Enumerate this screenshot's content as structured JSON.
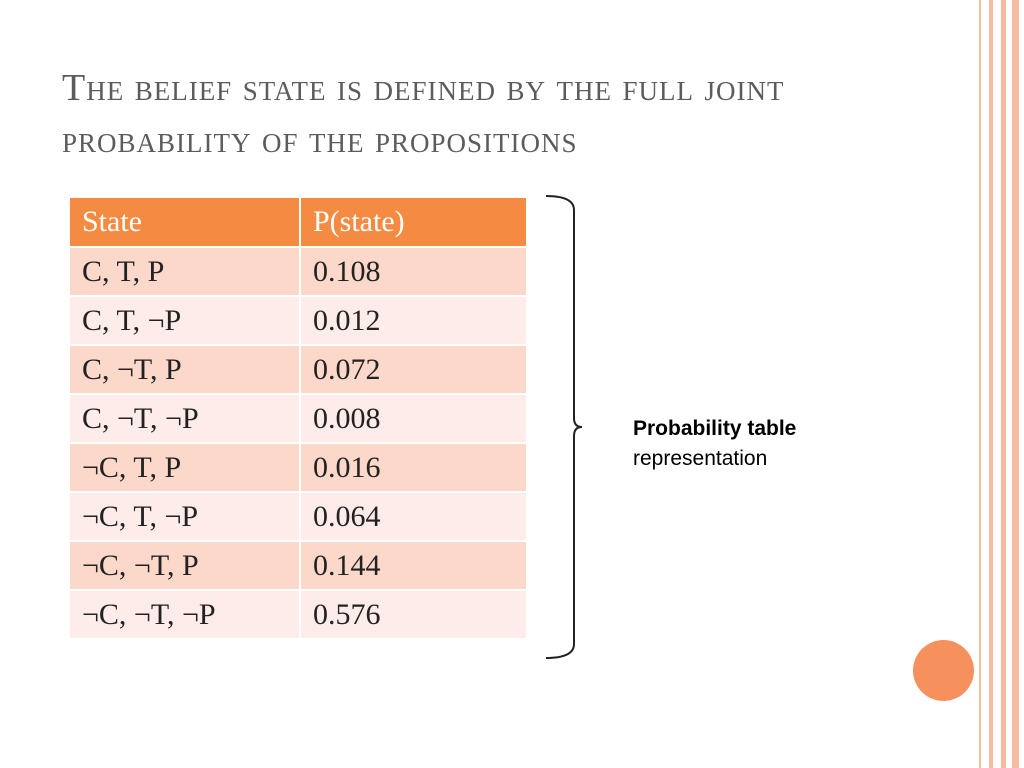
{
  "slide": {
    "title": "The belief state is defined by the full joint probability of the propositions",
    "table": {
      "headers": [
        "State",
        "P(state)"
      ],
      "rows": [
        {
          "state": "C, T, P",
          "p": "0.108"
        },
        {
          "state": "C, T, ¬P",
          "p": "0.012"
        },
        {
          "state": "C, ¬T, P",
          "p": "0.072"
        },
        {
          "state": "C, ¬T, ¬P",
          "p": "0.008"
        },
        {
          "state": "¬C, T, P",
          "p": "0.016"
        },
        {
          "state": "¬C, T, ¬P",
          "p": "0.064"
        },
        {
          "state": "¬C, ¬T, P",
          "p": "0.144"
        },
        {
          "state": "¬C, ¬T, ¬P",
          "p": "0.576"
        }
      ]
    },
    "annotation": {
      "bold": "Probability table",
      "normal": "representation"
    }
  },
  "colors": {
    "header": "#f58a42",
    "row_odd": "#fcd8cb",
    "row_even": "#fdecea",
    "accent_circle": "#f6915e",
    "frame_lines": "#f6b9a2"
  },
  "icons": [
    "right-brace-icon",
    "decorative-circle-icon"
  ]
}
